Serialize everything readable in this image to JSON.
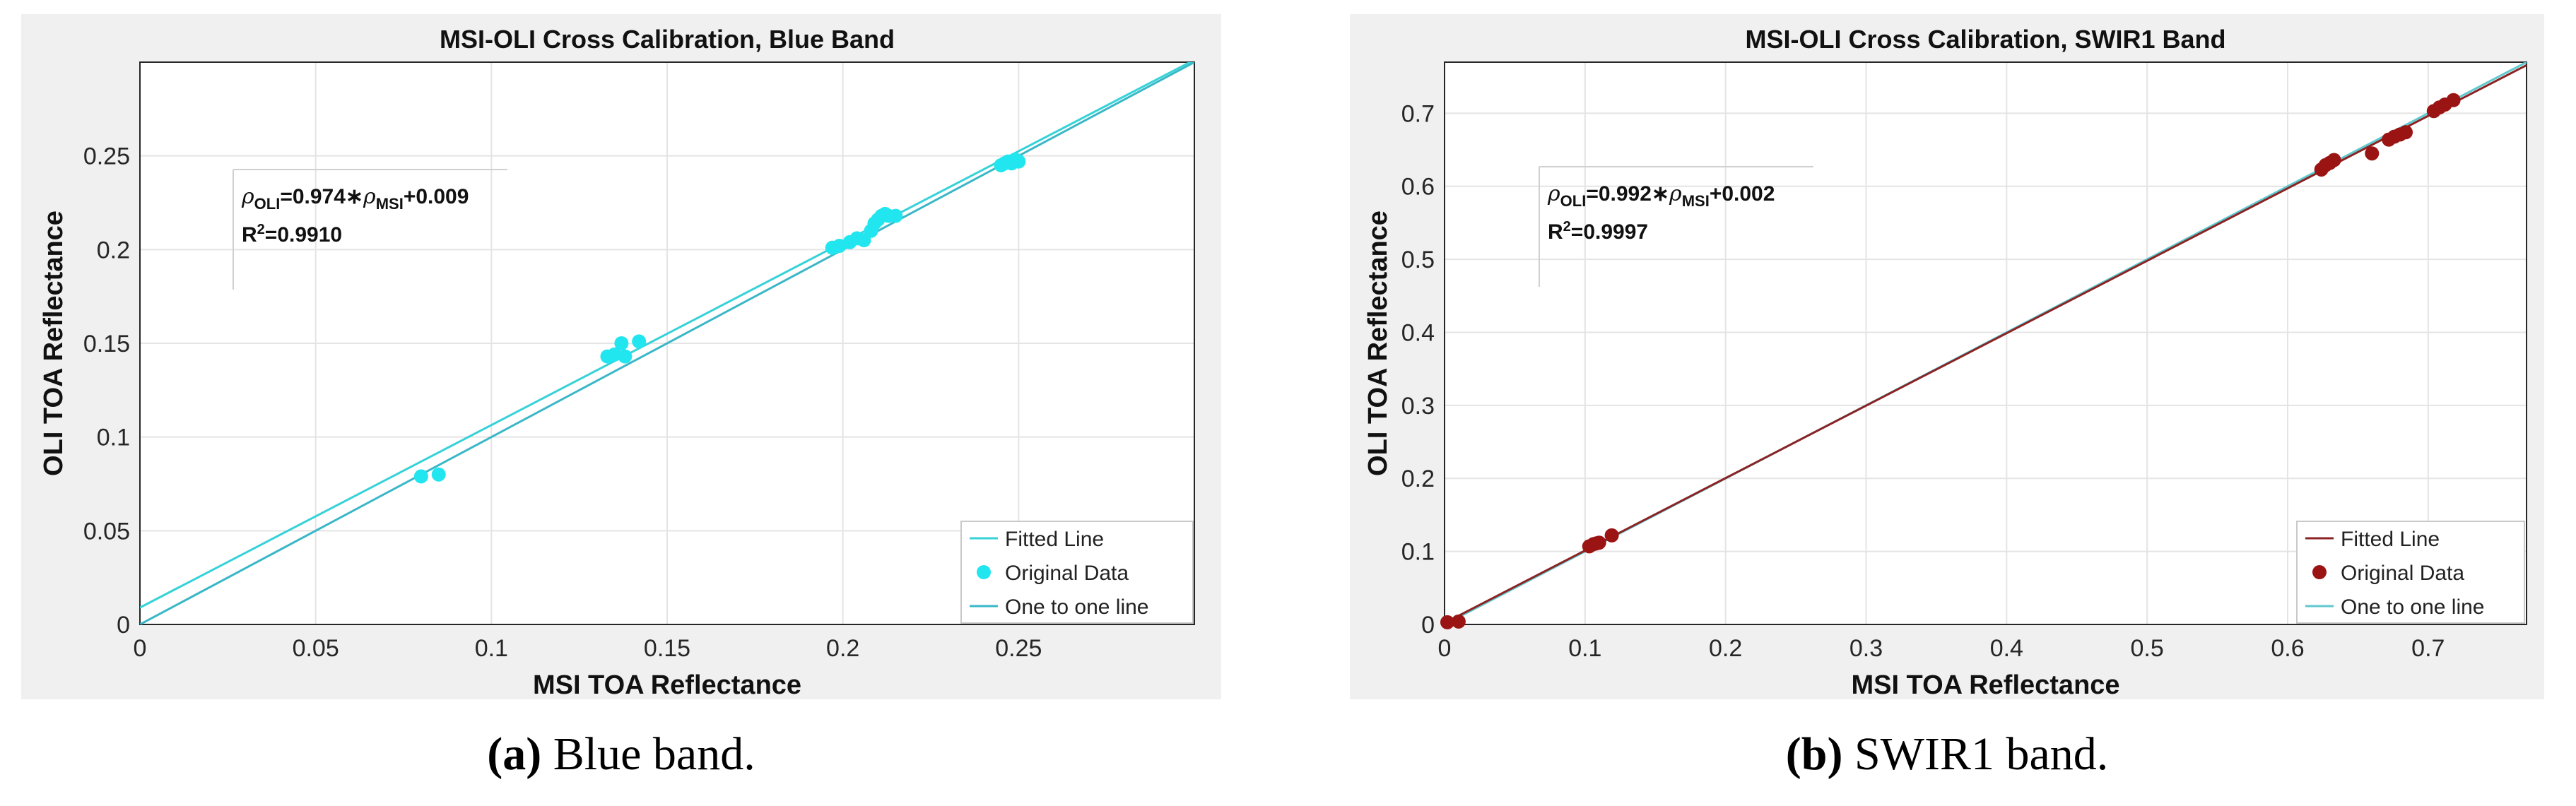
{
  "chart_data": [
    {
      "type": "scatter",
      "title": "MSI-OLI Cross Calibration, Blue Band",
      "xlabel": "MSI TOA Reflectance",
      "ylabel": "OLI TOA Reflectance",
      "xlim": [
        0,
        0.3
      ],
      "ylim": [
        0,
        0.3
      ],
      "xticks": [
        "0",
        "0.05",
        "0.1",
        "0.15",
        "0.2",
        "0.25"
      ],
      "yticks": [
        "0",
        "0.05",
        "0.1",
        "0.15",
        "0.2",
        "0.25"
      ],
      "grid": true,
      "legend_position": "bottom-right",
      "annotation": {
        "eq_rho": "ρ",
        "eq_sub1": "OLI",
        "eq_mid": "=0.974∗",
        "eq_rho2": "ρ",
        "eq_sub2": "MSI",
        "eq_end": "+0.009",
        "r2_lead": "R",
        "r2_sup": "2",
        "r2_val": "=0.9910"
      },
      "fit": {
        "slope": 0.974,
        "intercept": 0.009
      },
      "series": [
        {
          "name": "Fitted Line",
          "kind": "line",
          "color": "#36d2d8"
        },
        {
          "name": "Original Data",
          "kind": "points",
          "color": "#22e6ef",
          "x": [
            0.08,
            0.085,
            0.133,
            0.135,
            0.137,
            0.138,
            0.142,
            0.197,
            0.199,
            0.202,
            0.204,
            0.206,
            0.208,
            0.209,
            0.21,
            0.211,
            0.212,
            0.213,
            0.215,
            0.245,
            0.246,
            0.247,
            0.248,
            0.249,
            0.25
          ],
          "y": [
            0.079,
            0.08,
            0.143,
            0.144,
            0.15,
            0.143,
            0.151,
            0.201,
            0.202,
            0.204,
            0.206,
            0.205,
            0.21,
            0.214,
            0.216,
            0.218,
            0.219,
            0.218,
            0.218,
            0.245,
            0.246,
            0.247,
            0.246,
            0.248,
            0.247
          ]
        },
        {
          "name": "One to one line",
          "kind": "line",
          "color": "#3ab7c7"
        }
      ]
    },
    {
      "type": "scatter",
      "title": "MSI-OLI Cross Calibration, SWIR1 Band",
      "xlabel": "MSI TOA Reflectance",
      "ylabel": "OLI TOA Reflectance",
      "xlim": [
        0,
        0.77
      ],
      "ylim": [
        0,
        0.77
      ],
      "xticks": [
        "0",
        "0.1",
        "0.2",
        "0.3",
        "0.4",
        "0.5",
        "0.6",
        "0.7"
      ],
      "yticks": [
        "0",
        "0.1",
        "0.2",
        "0.3",
        "0.4",
        "0.5",
        "0.6",
        "0.7"
      ],
      "grid": true,
      "legend_position": "bottom-right",
      "annotation": {
        "eq_rho": "ρ",
        "eq_sub1": "OLI",
        "eq_mid": "=0.992∗",
        "eq_rho2": "ρ",
        "eq_sub2": "MSI",
        "eq_end": "+0.002",
        "r2_lead": "R",
        "r2_sup": "2",
        "r2_val": "=0.9997"
      },
      "fit": {
        "slope": 0.992,
        "intercept": 0.002
      },
      "series": [
        {
          "name": "Fitted Line",
          "kind": "line",
          "color": "#8b2323"
        },
        {
          "name": "Original Data",
          "kind": "points",
          "color": "#9b1414",
          "x": [
            0.002,
            0.01,
            0.103,
            0.106,
            0.108,
            0.11,
            0.119,
            0.624,
            0.627,
            0.63,
            0.633,
            0.66,
            0.672,
            0.676,
            0.68,
            0.684,
            0.704,
            0.708,
            0.712,
            0.718
          ],
          "y": [
            0.003,
            0.004,
            0.107,
            0.11,
            0.111,
            0.112,
            0.122,
            0.623,
            0.629,
            0.632,
            0.636,
            0.645,
            0.664,
            0.668,
            0.671,
            0.674,
            0.703,
            0.708,
            0.712,
            0.718
          ]
        },
        {
          "name": "One to one line",
          "kind": "line",
          "color": "#5ec9cf"
        }
      ]
    }
  ],
  "captions": {
    "a_tag": "(a)",
    "a_text": "Blue band.",
    "b_tag": "(b)",
    "b_text": "SWIR1 band."
  }
}
